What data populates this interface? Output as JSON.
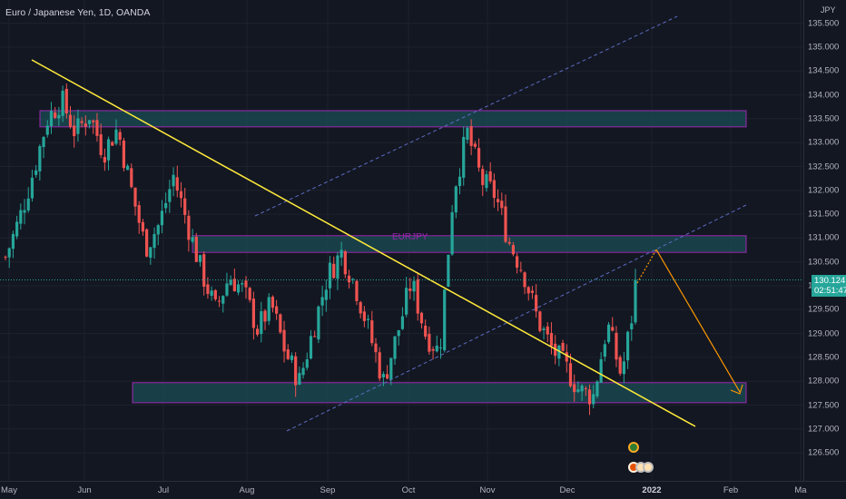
{
  "legend": {
    "title": "Euro / Japanese Yen, 1D, OANDA"
  },
  "price_scale": {
    "currency": "JPY",
    "ticks": [
      "135.500",
      "135.000",
      "134.500",
      "134.000",
      "133.500",
      "133.000",
      "132.500",
      "132.000",
      "131.500",
      "131.000",
      "130.500",
      "130.000",
      "129.500",
      "129.000",
      "128.500",
      "128.000",
      "127.500",
      "127.000",
      "126.500"
    ],
    "current_price": "130.124",
    "countdown": "02:51:47"
  },
  "time_scale": {
    "labels": [
      {
        "text": "May",
        "bold": false
      },
      {
        "text": "Jun",
        "bold": false
      },
      {
        "text": "Jul",
        "bold": false
      },
      {
        "text": "Aug",
        "bold": false
      },
      {
        "text": "Sep",
        "bold": false
      },
      {
        "text": "Oct",
        "bold": false
      },
      {
        "text": "Nov",
        "bold": false
      },
      {
        "text": "Dec",
        "bold": false
      },
      {
        "text": "2022",
        "bold": true
      },
      {
        "text": "Feb",
        "bold": false
      },
      {
        "text": "Ma",
        "bold": false
      }
    ]
  },
  "symbol_label": "EURJPY",
  "colors": {
    "up": "#26a69a",
    "down": "#ef5350",
    "trendline": "#ffeb3b",
    "zone_fill": "#1b4d55",
    "zone_border": "#9c27b0",
    "channel": "#5c6bc0",
    "projection": "#ff9800"
  },
  "zones": [
    {
      "high": 133.67,
      "low": 133.33
    },
    {
      "high": 131.05,
      "low": 130.7
    },
    {
      "high": 127.97,
      "low": 127.55
    }
  ],
  "event_icons": [
    "dividends-icon",
    "earnings-icon"
  ],
  "chart_data": {
    "type": "candlestick",
    "symbol": "EURJPY",
    "timeframe": "1D",
    "source": "OANDA",
    "ylim": [
      126.2,
      135.8
    ],
    "last_price": 130.124,
    "trend": [
      130.6,
      131.4,
      132.4,
      133.5,
      133.9,
      133.2,
      133.6,
      132.8,
      133.3,
      132.0,
      130.8,
      131.3,
      132.3,
      131.3,
      130.3,
      129.5,
      130.2,
      129.9,
      129.1,
      129.6,
      128.6,
      128.0,
      129.1,
      130.2,
      130.7,
      130.0,
      129.0,
      128.0,
      129.0,
      130.1,
      129.0,
      128.6,
      132.0,
      133.2,
      132.2,
      131.9,
      130.9,
      130.3,
      129.3,
      128.7,
      128.3,
      127.8,
      127.7,
      129.2,
      128.1,
      129.8
    ]
  }
}
